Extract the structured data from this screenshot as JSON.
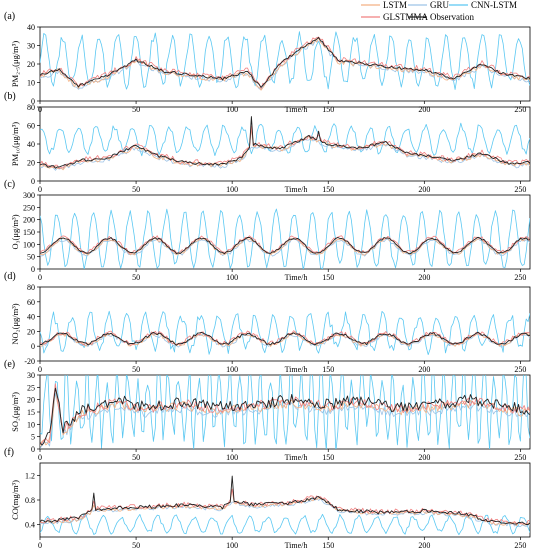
{
  "legend": [
    {
      "name": "LSTM",
      "color": "#f4b183"
    },
    {
      "name": "GRU",
      "color": "#9dc3e6"
    },
    {
      "name": "CNN-LSTM",
      "color": "#5bc8f2"
    },
    {
      "name": "GLSTMMA",
      "color": "#f08080"
    },
    {
      "name": "Observation",
      "color": "#222222"
    }
  ],
  "chart_data": [
    {
      "panel": "(a)",
      "type": "line",
      "ylabel": "PM₂.₅(μg/m³)",
      "xlabel": "Time/h",
      "xlim": [
        0,
        255
      ],
      "ylim": [
        0,
        40
      ],
      "yticks": [
        0,
        10,
        20,
        30,
        40
      ],
      "xticks": [
        0,
        50,
        100,
        150,
        200,
        250
      ],
      "knots": [
        [
          0,
          14
        ],
        [
          10,
          17
        ],
        [
          20,
          8
        ],
        [
          35,
          14
        ],
        [
          50,
          22
        ],
        [
          65,
          16
        ],
        [
          80,
          14
        ],
        [
          95,
          12
        ],
        [
          108,
          16
        ],
        [
          115,
          7
        ],
        [
          125,
          20
        ],
        [
          135,
          28
        ],
        [
          145,
          34
        ],
        [
          155,
          22
        ],
        [
          170,
          20
        ],
        [
          185,
          18
        ],
        [
          200,
          17
        ],
        [
          215,
          12
        ],
        [
          230,
          20
        ],
        [
          240,
          15
        ],
        [
          255,
          12
        ]
      ],
      "series": [
        {
          "name": "Observation",
          "noise": 0.7,
          "offset": 0
        },
        {
          "name": "LSTM",
          "noise": 1.4,
          "offset": -0.6
        },
        {
          "name": "GRU",
          "noise": 1.3,
          "offset": -1.2
        },
        {
          "name": "GLSTMMA",
          "noise": 1.5,
          "offset": 0.6
        },
        {
          "name": "CNN-LSTM",
          "base": 22,
          "amp": 13,
          "period": 9.5,
          "noise": 3
        }
      ]
    },
    {
      "panel": "(b)",
      "type": "line",
      "ylabel": "PM₁₀(μg/m³)",
      "xlabel": "Time/h",
      "xlim": [
        0,
        255
      ],
      "ylim": [
        0,
        80
      ],
      "yticks": [
        0,
        20,
        40,
        60,
        80
      ],
      "xticks": [
        0,
        50,
        100,
        150,
        200,
        250
      ],
      "knots": [
        [
          0,
          18
        ],
        [
          10,
          14
        ],
        [
          20,
          22
        ],
        [
          35,
          25
        ],
        [
          50,
          38
        ],
        [
          60,
          28
        ],
        [
          75,
          20
        ],
        [
          95,
          18
        ],
        [
          105,
          25
        ],
        [
          110,
          40
        ],
        [
          125,
          35
        ],
        [
          140,
          48
        ],
        [
          150,
          40
        ],
        [
          165,
          35
        ],
        [
          180,
          42
        ],
        [
          190,
          30
        ],
        [
          200,
          28
        ],
        [
          215,
          22
        ],
        [
          230,
          30
        ],
        [
          245,
          18
        ],
        [
          255,
          20
        ]
      ],
      "spikes": [
        [
          110,
          70
        ],
        [
          145,
          55
        ]
      ],
      "series": [
        {
          "name": "Observation",
          "noise": 1.5,
          "offset": 0
        },
        {
          "name": "LSTM",
          "noise": 2.5,
          "offset": -1
        },
        {
          "name": "GRU",
          "noise": 2.5,
          "offset": -2
        },
        {
          "name": "GLSTMMA",
          "noise": 3,
          "offset": 1
        },
        {
          "name": "CNN-LSTM",
          "base": 45,
          "amp": 14,
          "period": 9.5,
          "noise": 4
        }
      ]
    },
    {
      "panel": "(c)",
      "type": "line",
      "ylabel": "O₃(μg/m³)",
      "xlabel": "Time/h",
      "xlim": [
        0,
        255
      ],
      "ylim": [
        0,
        300
      ],
      "yticks": [
        0,
        50,
        100,
        150,
        200,
        250,
        300
      ],
      "xticks": [
        0,
        50,
        100,
        150,
        200,
        250
      ],
      "daily": {
        "base": 95,
        "amp": 30,
        "period": 24
      },
      "series": [
        {
          "name": "Observation",
          "noise": 4,
          "offset": 0
        },
        {
          "name": "LSTM",
          "noise": 6,
          "offset": -4
        },
        {
          "name": "GRU",
          "noise": 6,
          "offset": -8
        },
        {
          "name": "GLSTMMA",
          "noise": 7,
          "offset": 4
        },
        {
          "name": "CNN-LSTM",
          "base": 120,
          "amp": 110,
          "period": 9.5,
          "noise": 15
        }
      ]
    },
    {
      "panel": "(d)",
      "type": "line",
      "ylabel": "NO₂(μg/m³)",
      "xlabel": "Time/h",
      "xlim": [
        0,
        255
      ],
      "ylim": [
        -20,
        80
      ],
      "yticks": [
        -20,
        0,
        20,
        40,
        60,
        80
      ],
      "xticks": [
        0,
        50,
        100,
        150,
        200,
        250
      ],
      "daily": {
        "base": 10,
        "amp": 7,
        "period": 24
      },
      "series": [
        {
          "name": "Observation",
          "noise": 2,
          "offset": 0
        },
        {
          "name": "LSTM",
          "noise": 2.5,
          "offset": -1
        },
        {
          "name": "GRU",
          "noise": 2.5,
          "offset": -2
        },
        {
          "name": "GLSTMMA",
          "noise": 3,
          "offset": 1
        },
        {
          "name": "CNN-LSTM",
          "base": 18,
          "amp": 22,
          "period": 9.5,
          "noise": 8
        }
      ]
    },
    {
      "panel": "(e)",
      "type": "line",
      "ylabel": "SO₂(μg/m³)",
      "xlabel": "Time/h",
      "xlim": [
        0,
        255
      ],
      "ylim": [
        0,
        30
      ],
      "yticks": [
        0,
        5,
        10,
        15,
        20,
        25,
        30
      ],
      "xticks": [
        0,
        50,
        100,
        150,
        200,
        250
      ],
      "knots": [
        [
          0,
          3
        ],
        [
          5,
          5
        ],
        [
          8,
          26
        ],
        [
          12,
          8
        ],
        [
          20,
          15
        ],
        [
          40,
          20
        ],
        [
          55,
          17
        ],
        [
          75,
          19
        ],
        [
          90,
          17
        ],
        [
          110,
          18
        ],
        [
          130,
          20
        ],
        [
          150,
          18
        ],
        [
          165,
          20
        ],
        [
          185,
          17
        ],
        [
          205,
          18
        ],
        [
          225,
          20
        ],
        [
          245,
          17
        ],
        [
          255,
          16
        ]
      ],
      "series": [
        {
          "name": "Observation",
          "noise": 2.2,
          "offset": 0
        },
        {
          "name": "LSTM",
          "noise": 1.8,
          "offset": -1.5
        },
        {
          "name": "GRU",
          "noise": 1.8,
          "offset": -2.5
        },
        {
          "name": "GLSTMMA",
          "noise": 2,
          "offset": -0.5
        },
        {
          "name": "CNN-LSTM",
          "base": 18,
          "amp": 14,
          "period": 5.3,
          "noise": 6
        }
      ]
    },
    {
      "panel": "(f)",
      "type": "line",
      "ylabel": "CO(mg/m³)",
      "xlabel": "Time/h",
      "xlim": [
        0,
        255
      ],
      "ylim": [
        0.2,
        1.4
      ],
      "yticks": [
        0.4,
        0.8,
        1.2
      ],
      "xticks": [
        0,
        50,
        100,
        150,
        200,
        250
      ],
      "knots": [
        [
          0,
          0.45
        ],
        [
          20,
          0.5
        ],
        [
          28,
          0.65
        ],
        [
          50,
          0.68
        ],
        [
          75,
          0.72
        ],
        [
          95,
          0.68
        ],
        [
          100,
          0.8
        ],
        [
          110,
          0.72
        ],
        [
          130,
          0.75
        ],
        [
          145,
          0.85
        ],
        [
          155,
          0.65
        ],
        [
          175,
          0.6
        ],
        [
          200,
          0.62
        ],
        [
          220,
          0.58
        ],
        [
          235,
          0.45
        ],
        [
          255,
          0.42
        ]
      ],
      "spikes": [
        [
          100,
          1.18
        ],
        [
          28,
          0.9
        ]
      ],
      "series": [
        {
          "name": "Observation",
          "noise": 0.03,
          "offset": 0
        },
        {
          "name": "LSTM",
          "noise": 0.03,
          "offset": -0.02
        },
        {
          "name": "GRU",
          "noise": 0.03,
          "offset": -0.03
        },
        {
          "name": "GLSTMMA",
          "noise": 0.04,
          "offset": 0.01
        },
        {
          "name": "CNN-LSTM",
          "base": 0.4,
          "amp": 0.13,
          "period": 9.5,
          "noise": 0.04
        }
      ]
    }
  ]
}
